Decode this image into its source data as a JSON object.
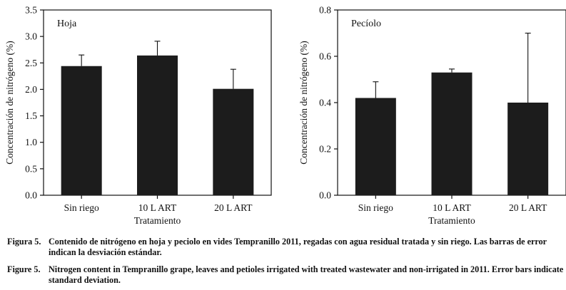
{
  "chart_data": [
    {
      "type": "bar",
      "annotation": "Hoja",
      "ylabel": "Concentración de nitrógeno (%)",
      "xlabel": "Tratamiento",
      "categories": [
        "Sin riego",
        "10 L ART",
        "20 L ART"
      ],
      "values": [
        2.44,
        2.64,
        2.01
      ],
      "error": [
        0.21,
        0.27,
        0.37
      ],
      "ylim": [
        0,
        3.5
      ],
      "yticks": [
        "0.0",
        "0.5",
        "1.0",
        "1.5",
        "2.0",
        "2.5",
        "3.0",
        "3.5"
      ],
      "grid": false,
      "bar_color": "#1c1c1c"
    },
    {
      "type": "bar",
      "annotation": "Pecíolo",
      "ylabel": "Concentración de nitrógeno (%)",
      "xlabel": "Tratamiento",
      "categories": [
        "Sin riego",
        "10 L ART",
        "20 L ART"
      ],
      "values": [
        0.42,
        0.53,
        0.4
      ],
      "error": [
        0.07,
        0.015,
        0.3
      ],
      "ylim": [
        0,
        0.8
      ],
      "yticks": [
        "0.0",
        "0.2",
        "0.4",
        "0.6",
        "0.8"
      ],
      "grid": false,
      "bar_color": "#1c1c1c"
    }
  ],
  "caption": {
    "es_label": "Figura 5.",
    "es_text": "Contenido de nitrógeno en hoja y peciolo en vides Tempranillo 2011, regadas con agua residual tratada y sin riego. Las barras de error indican la desviación estándar.",
    "en_label": "Figure 5.",
    "en_text": "Nitrogen content in Tempranillo grape, leaves and petioles irrigated with treated wastewater and non-irrigated in 2011. Error bars indicate standard deviation."
  }
}
